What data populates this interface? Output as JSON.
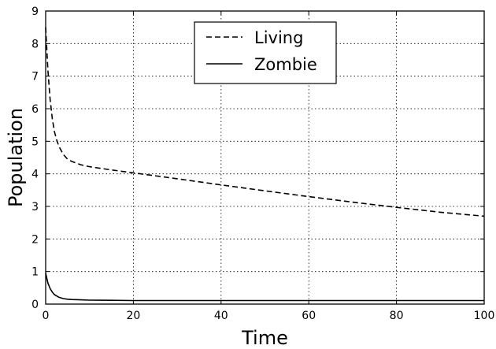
{
  "chart_data": {
    "type": "line",
    "xlabel": "Time",
    "ylabel": "Population",
    "xlim": [
      0,
      100
    ],
    "ylim": [
      0,
      9
    ],
    "x_ticks": [
      0,
      20,
      40,
      60,
      80,
      100
    ],
    "y_ticks": [
      0,
      1,
      2,
      3,
      4,
      5,
      6,
      7,
      8,
      9
    ],
    "grid": true,
    "legend_position": "top-center",
    "series": [
      {
        "name": "Living",
        "style": "dashed",
        "color": "#000000",
        "x": [
          0,
          0.5,
          1,
          1.5,
          2,
          2.5,
          3,
          4,
          5,
          6,
          8,
          10,
          15,
          20,
          30,
          40,
          50,
          60,
          70,
          80,
          90,
          100
        ],
        "y": [
          8.5,
          7.2,
          6.3,
          5.7,
          5.3,
          5.05,
          4.85,
          4.6,
          4.45,
          4.38,
          4.28,
          4.22,
          4.12,
          4.03,
          3.85,
          3.66,
          3.48,
          3.3,
          3.13,
          2.97,
          2.82,
          2.7
        ]
      },
      {
        "name": "Zombie",
        "style": "solid",
        "color": "#000000",
        "x": [
          0,
          0.5,
          1,
          1.5,
          2,
          3,
          4,
          5,
          6,
          8,
          10,
          15,
          20,
          40,
          60,
          80,
          100
        ],
        "y": [
          0.95,
          0.65,
          0.48,
          0.37,
          0.29,
          0.21,
          0.17,
          0.15,
          0.14,
          0.13,
          0.12,
          0.115,
          0.11,
          0.11,
          0.11,
          0.11,
          0.11
        ]
      }
    ]
  }
}
